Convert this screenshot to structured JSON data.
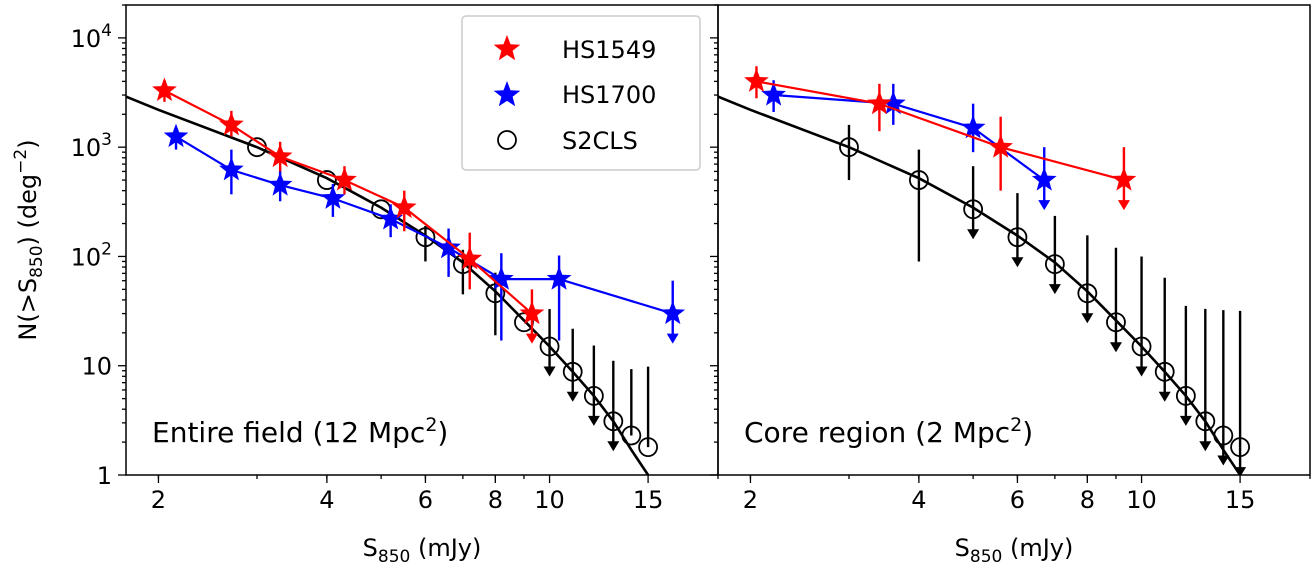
{
  "figure": {
    "ylabel": "N(>S",
    "ylabel_sub": "850",
    "ylabel_rest": ") (deg",
    "ylabel_sup": "−2",
    "ylabel_end": ")",
    "xlabel": "S",
    "xlabel_sub": "850",
    "xlabel_rest": " (mJy)",
    "legend": {
      "entries": [
        {
          "label": "HS1549",
          "marker": "star",
          "color": "#ff0000"
        },
        {
          "label": "HS1700",
          "marker": "star",
          "color": "#0000ff"
        },
        {
          "label": "S2CLS",
          "marker": "open-circle",
          "color": "#000000"
        }
      ]
    },
    "yticks": [
      {
        "base": "10",
        "exp": "4"
      },
      {
        "base": "10",
        "exp": "3"
      },
      {
        "base": "10",
        "exp": "2"
      },
      {
        "base": "10",
        "exp": ""
      },
      {
        "base": "1",
        "exp": ""
      }
    ],
    "xticks": [
      "2",
      "4",
      "6",
      "8",
      "10",
      "15"
    ]
  },
  "chart_data": [
    {
      "type": "scatter",
      "panel_label": "Entire field (12 Mpc",
      "panel_label_sup": "2",
      "panel_label_end": ")",
      "x_scale": "log",
      "y_scale": "log",
      "xlim": [
        1.75,
        20
      ],
      "ylim": [
        1,
        20000
      ],
      "series": [
        {
          "name": "HS1549",
          "color": "#ff0000",
          "marker": "star",
          "connected": true,
          "x": [
            2.05,
            2.7,
            3.3,
            4.3,
            5.5,
            7.2,
            9.3
          ],
          "y": [
            3300,
            1600,
            820,
            500,
            280,
            95,
            30
          ],
          "err_lo": [
            700,
            350,
            220,
            130,
            110,
            45,
            0
          ],
          "err_hi": [
            800,
            550,
            300,
            170,
            120,
            70,
            20
          ],
          "upper_limit": [
            false,
            false,
            false,
            false,
            false,
            false,
            true
          ]
        },
        {
          "name": "HS1700",
          "color": "#0000ff",
          "marker": "star",
          "connected": true,
          "x": [
            2.15,
            2.7,
            3.3,
            4.1,
            5.2,
            6.6,
            8.2,
            10.4,
            16.6
          ],
          "y": [
            1250,
            620,
            450,
            340,
            220,
            120,
            62,
            62,
            30
          ],
          "err_lo": [
            300,
            250,
            130,
            110,
            70,
            55,
            45,
            45,
            0
          ],
          "err_hi": [
            250,
            330,
            200,
            120,
            80,
            60,
            45,
            40,
            30
          ],
          "upper_limit": [
            false,
            false,
            false,
            false,
            false,
            false,
            false,
            false,
            true
          ]
        },
        {
          "name": "S2CLS",
          "color": "#000000",
          "marker": "open-circle",
          "connected": false,
          "x": [
            3.0,
            4.0,
            5.0,
            6.0,
            7.0,
            8.0,
            9.0,
            10.0,
            11.0,
            12.0,
            13.0,
            14.0,
            15.0
          ],
          "y": [
            1000,
            500,
            270,
            150,
            85,
            46,
            25,
            15,
            8.8,
            5.3,
            3.1,
            2.3,
            1.8
          ],
          "err_lo": [
            0,
            0,
            0,
            60,
            40,
            27,
            0,
            0,
            0,
            0,
            0,
            0,
            0
          ],
          "err_hi": [
            0,
            0,
            0,
            40,
            30,
            25,
            0,
            18,
            13,
            10,
            8,
            7,
            8
          ],
          "upper_limit": [
            false,
            false,
            false,
            false,
            false,
            false,
            false,
            true,
            true,
            true,
            true,
            false,
            false
          ]
        },
        {
          "name": "model",
          "color": "#000000",
          "marker": "none",
          "connected": true,
          "x": [
            1.75,
            2,
            3,
            4,
            5,
            6,
            7,
            8,
            9,
            10,
            11,
            12,
            13,
            14,
            15
          ],
          "y": [
            2900,
            2200,
            1000,
            520,
            280,
            155,
            88,
            48,
            26,
            15,
            8.8,
            5.3,
            3.1,
            1.7,
            1.0
          ]
        }
      ]
    },
    {
      "type": "scatter",
      "panel_label": "Core region (2 Mpc",
      "panel_label_sup": "2",
      "panel_label_end": ")",
      "x_scale": "log",
      "y_scale": "log",
      "xlim": [
        1.75,
        20
      ],
      "ylim": [
        1,
        20000
      ],
      "series": [
        {
          "name": "HS1549",
          "color": "#ff0000",
          "marker": "star",
          "connected": true,
          "x": [
            2.05,
            3.4,
            5.6,
            9.3
          ],
          "y": [
            4000,
            2500,
            1000,
            500
          ],
          "err_lo": [
            1200,
            1100,
            600,
            0
          ],
          "err_hi": [
            1500,
            1300,
            900,
            500
          ],
          "upper_limit": [
            false,
            false,
            false,
            true
          ]
        },
        {
          "name": "HS1700",
          "color": "#0000ff",
          "marker": "star",
          "connected": true,
          "x": [
            2.2,
            3.6,
            5.0,
            6.7
          ],
          "y": [
            3000,
            2500,
            1500,
            500
          ],
          "err_lo": [
            900,
            900,
            600,
            0
          ],
          "err_hi": [
            1100,
            1300,
            1000,
            500
          ],
          "upper_limit": [
            false,
            false,
            false,
            true
          ]
        },
        {
          "name": "S2CLS",
          "color": "#000000",
          "marker": "open-circle",
          "connected": false,
          "x": [
            3.0,
            4.0,
            5.0,
            6.0,
            7.0,
            8.0,
            9.0,
            10.0,
            11.0,
            12.0,
            13.0,
            14.0,
            15.0
          ],
          "y": [
            1000,
            500,
            270,
            150,
            85,
            46,
            25,
            15,
            8.8,
            5.3,
            3.1,
            2.3,
            1.8
          ],
          "err_lo": [
            500,
            410,
            0,
            0,
            0,
            0,
            0,
            0,
            0,
            0,
            0,
            0,
            0
          ],
          "err_hi": [
            600,
            450,
            400,
            230,
            150,
            110,
            95,
            85,
            55,
            30,
            30,
            30,
            30
          ],
          "upper_limit": [
            false,
            false,
            true,
            true,
            true,
            true,
            true,
            true,
            true,
            true,
            true,
            true,
            true
          ]
        },
        {
          "name": "model",
          "color": "#000000",
          "marker": "none",
          "connected": true,
          "x": [
            1.75,
            2,
            3,
            4,
            5,
            6,
            7,
            8,
            9,
            10,
            11,
            12,
            13,
            14,
            15
          ],
          "y": [
            2900,
            2200,
            1000,
            520,
            280,
            155,
            88,
            48,
            26,
            15,
            8.8,
            5.3,
            3.1,
            1.7,
            1.0
          ]
        }
      ]
    }
  ]
}
